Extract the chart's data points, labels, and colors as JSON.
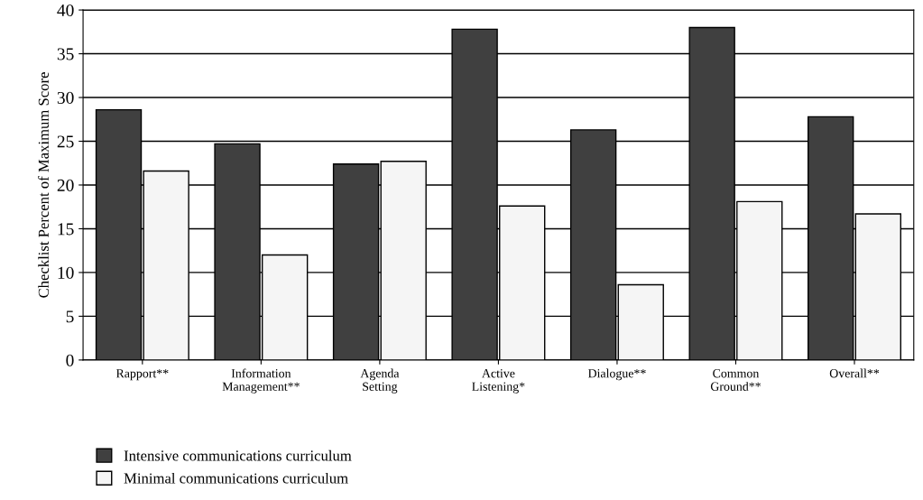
{
  "chart_data": {
    "type": "bar",
    "ylabel": "Checklist Percent of Maximum Score",
    "categories": [
      "Rapport**",
      "Information Management**",
      "Agenda Setting",
      "Active Listening*",
      "Dialogue**",
      "Common Ground**",
      "Overall**"
    ],
    "series": [
      {
        "name": "Intensive communications curriculum",
        "color": "#404040",
        "values": [
          28.6,
          24.7,
          22.4,
          37.8,
          26.3,
          38.0,
          27.8
        ]
      },
      {
        "name": "Minimal communications curriculum",
        "color": "#f5f5f5",
        "values": [
          21.6,
          12.0,
          22.7,
          17.6,
          8.6,
          18.1,
          16.7
        ]
      }
    ],
    "ylim": [
      0,
      40
    ],
    "yticks": [
      0,
      5,
      10,
      15,
      20,
      25,
      30,
      35,
      40
    ],
    "grid": "y",
    "legend": "bottom left"
  }
}
